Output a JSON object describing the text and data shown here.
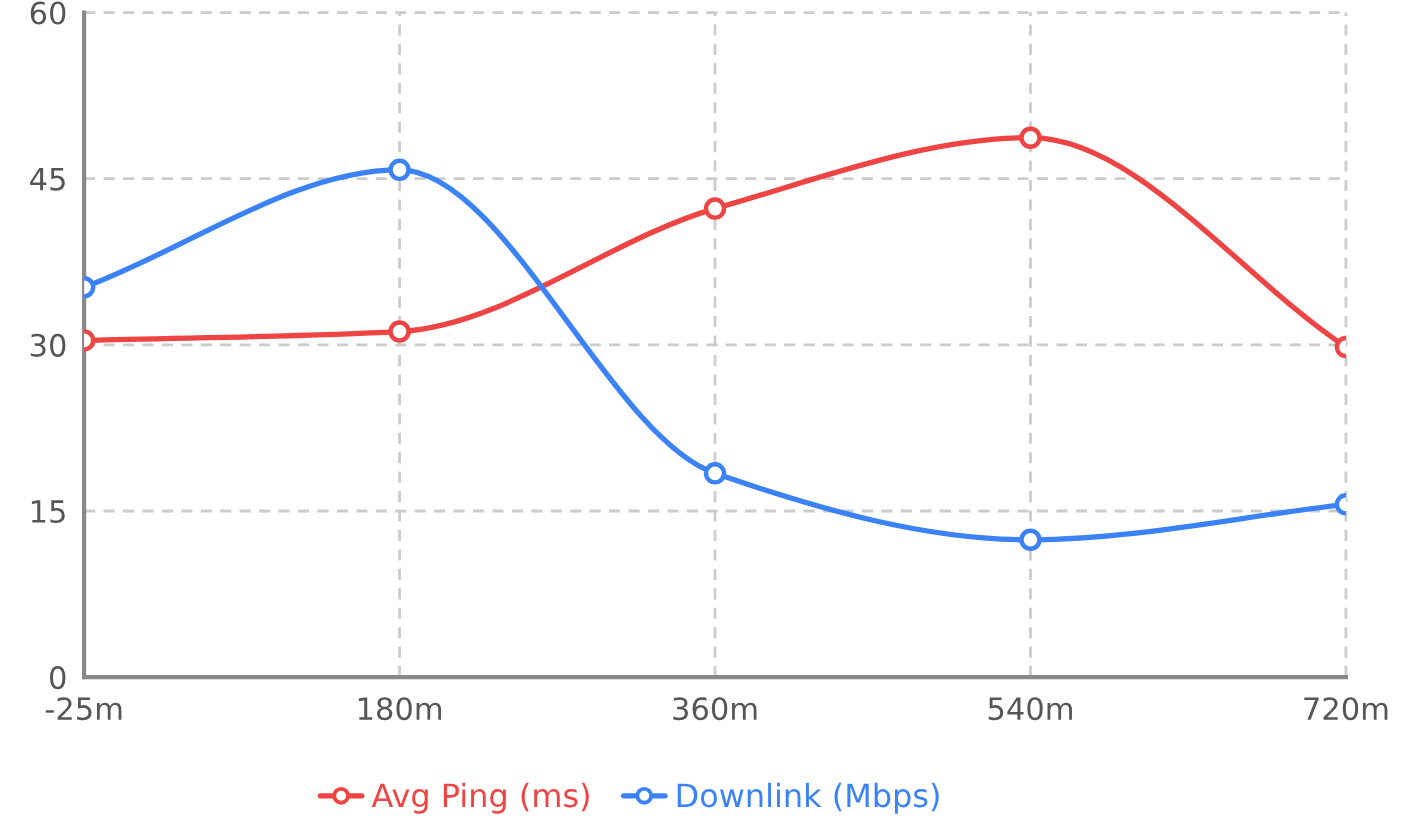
{
  "chart_data": {
    "type": "line",
    "categories": [
      "-25m",
      "180m",
      "360m",
      "540m",
      "720m"
    ],
    "series": [
      {
        "name": "Avg Ping (ms)",
        "color": "#ef4444",
        "values": [
          30.4,
          31.2,
          42.3,
          48.7,
          29.8
        ]
      },
      {
        "name": "Downlink (Mbps)",
        "color": "#3b82f6",
        "values": [
          35.2,
          45.8,
          18.4,
          12.4,
          15.6
        ]
      }
    ],
    "ylim": [
      0,
      60
    ],
    "yticks": [
      0,
      15,
      30,
      45,
      60
    ],
    "grid": true,
    "legend": "bottom",
    "marker": "circle",
    "line_style": "solid"
  }
}
